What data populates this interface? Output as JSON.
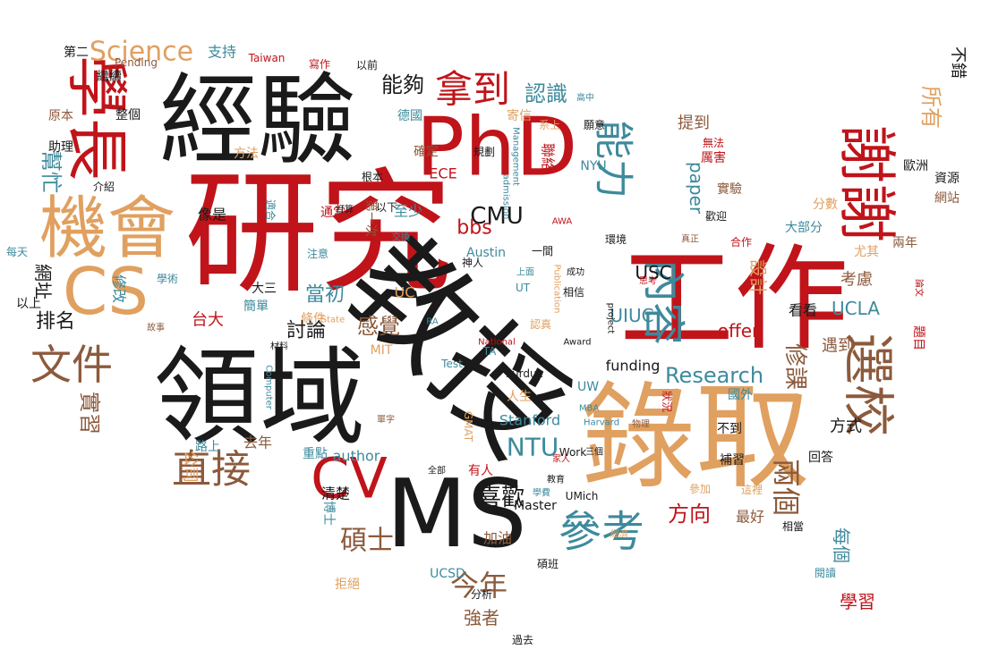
{
  "palette": {
    "red": "#c0141a",
    "black": "#1a1a1a",
    "tan": "#e0a060",
    "teal": "#3d8a9c",
    "brown": "#8c5a3c"
  },
  "words": [
    {
      "text": "研究",
      "color": "red"
    },
    {
      "text": "經驗",
      "color": "black"
    },
    {
      "text": "PhD",
      "color": "red"
    },
    {
      "text": "領域",
      "color": "black"
    },
    {
      "text": "教授",
      "color": "black"
    },
    {
      "text": "錄取",
      "color": "tan"
    },
    {
      "text": "工作",
      "color": "red"
    },
    {
      "text": "MS",
      "color": "black"
    },
    {
      "text": "機會",
      "color": "tan"
    },
    {
      "text": "CS",
      "color": "tan"
    },
    {
      "text": "學長",
      "color": "red"
    },
    {
      "text": "謝謝",
      "color": "red"
    },
    {
      "text": "CV",
      "color": "red"
    },
    {
      "text": "選校",
      "color": "brown"
    },
    {
      "text": "文件",
      "color": "brown"
    },
    {
      "text": "參考",
      "color": "teal"
    },
    {
      "text": "直接",
      "color": "brown"
    },
    {
      "text": "內容",
      "color": "teal"
    },
    {
      "text": "拿到",
      "color": "red"
    },
    {
      "text": "能力",
      "color": "teal"
    },
    {
      "text": "Science",
      "color": "tan"
    },
    {
      "text": "CMU",
      "color": "black"
    },
    {
      "text": "NTU",
      "color": "teal"
    },
    {
      "text": "Research",
      "color": "teal"
    },
    {
      "text": "今年",
      "color": "brown"
    },
    {
      "text": "碩士",
      "color": "brown"
    },
    {
      "text": "兩個",
      "color": "brown"
    },
    {
      "text": "所有",
      "color": "tan"
    },
    {
      "text": "喜歡",
      "color": "black"
    },
    {
      "text": "感覺",
      "color": "brown"
    },
    {
      "text": "幫忙",
      "color": "teal"
    },
    {
      "text": "實習",
      "color": "brown"
    },
    {
      "text": "網址",
      "color": "black"
    },
    {
      "text": "排名",
      "color": "black"
    },
    {
      "text": "認識",
      "color": "teal"
    },
    {
      "text": "能夠",
      "color": "black"
    },
    {
      "text": "修課",
      "color": "brown"
    },
    {
      "text": "paper",
      "color": "teal"
    },
    {
      "text": "方向",
      "color": "red"
    },
    {
      "text": "每個",
      "color": "teal"
    },
    {
      "text": "UIUC",
      "color": "teal"
    },
    {
      "text": "USC",
      "color": "black"
    },
    {
      "text": "UCLA",
      "color": "teal"
    },
    {
      "text": "offer",
      "color": "red"
    },
    {
      "text": "bbs",
      "color": "red"
    },
    {
      "text": "當初",
      "color": "teal"
    },
    {
      "text": "討論",
      "color": "black"
    },
    {
      "text": "台大",
      "color": "red"
    },
    {
      "text": "強者",
      "color": "brown"
    },
    {
      "text": "學習",
      "color": "red"
    },
    {
      "text": "Stanford",
      "color": "teal"
    },
    {
      "text": "funding",
      "color": "black"
    },
    {
      "text": "設計",
      "color": "tan"
    },
    {
      "text": "考慮",
      "color": "brown"
    },
    {
      "text": "方式",
      "color": "black"
    },
    {
      "text": "看看",
      "color": "black"
    },
    {
      "text": "遇到",
      "color": "brown"
    },
    {
      "text": "公司",
      "color": "tan"
    },
    {
      "text": "路上",
      "color": "teal"
    },
    {
      "text": "清楚",
      "color": "black"
    },
    {
      "text": "Master",
      "color": "black"
    },
    {
      "text": "加油",
      "color": "brown"
    },
    {
      "text": "UCSD",
      "color": "teal"
    },
    {
      "text": "最好",
      "color": "brown"
    },
    {
      "text": "支持",
      "color": "teal"
    },
    {
      "text": "第二",
      "color": "black"
    },
    {
      "text": "Taiwan",
      "color": "red"
    },
    {
      "text": "Pending",
      "color": "brown"
    },
    {
      "text": "繼續",
      "color": "black"
    },
    {
      "text": "原本",
      "color": "brown"
    },
    {
      "text": "整個",
      "color": "black"
    },
    {
      "text": "助理",
      "color": "black"
    },
    {
      "text": "方法",
      "color": "tan"
    },
    {
      "text": "提到",
      "color": "brown"
    },
    {
      "text": "以上",
      "color": "black"
    },
    {
      "text": "修改",
      "color": "teal"
    },
    {
      "text": "每天",
      "color": "teal"
    },
    {
      "text": "大三",
      "color": "black"
    },
    {
      "text": "簡單",
      "color": "teal"
    },
    {
      "text": "條件",
      "color": "tan"
    },
    {
      "text": "去年",
      "color": "brown"
    },
    {
      "text": "author",
      "color": "teal"
    },
    {
      "text": "重點",
      "color": "teal"
    },
    {
      "text": "博士",
      "color": "teal"
    },
    {
      "text": "有人",
      "color": "red"
    },
    {
      "text": "人生",
      "color": "tan"
    },
    {
      "text": "ECE",
      "color": "red"
    },
    {
      "text": "UW",
      "color": "teal"
    },
    {
      "text": "NYU",
      "color": "teal"
    },
    {
      "text": "MIT",
      "color": "tan"
    },
    {
      "text": "Purdue",
      "color": "black"
    },
    {
      "text": "UMich",
      "color": "black"
    },
    {
      "text": "分析",
      "color": "black"
    },
    {
      "text": "碩班",
      "color": "black"
    },
    {
      "text": "拒絕",
      "color": "tan"
    },
    {
      "text": "資源",
      "color": "black"
    },
    {
      "text": "網站",
      "color": "brown"
    },
    {
      "text": "歐洲",
      "color": "black"
    },
    {
      "text": "兩年",
      "color": "brown"
    },
    {
      "text": "尤其",
      "color": "tan"
    },
    {
      "text": "大部分",
      "color": "teal"
    },
    {
      "text": "分數",
      "color": "tan"
    },
    {
      "text": "實驗",
      "color": "brown"
    },
    {
      "text": "厲害",
      "color": "red"
    },
    {
      "text": "無法",
      "color": "red"
    },
    {
      "text": "題目",
      "color": "red"
    },
    {
      "text": "回答",
      "color": "black"
    },
    {
      "text": "補習",
      "color": "black"
    },
    {
      "text": "不到",
      "color": "black"
    },
    {
      "text": "國外",
      "color": "teal"
    },
    {
      "text": "狀況",
      "color": "red"
    },
    {
      "text": "歡迎",
      "color": "black"
    },
    {
      "text": "不錯",
      "color": "black"
    },
    {
      "text": "德國",
      "color": "teal"
    },
    {
      "text": "寄信",
      "color": "tan"
    },
    {
      "text": "聯絡",
      "color": "red"
    },
    {
      "text": "確定",
      "color": "brown"
    },
    {
      "text": "規劃",
      "color": "black"
    },
    {
      "text": "第一次",
      "color": "brown"
    },
    {
      "text": "像是",
      "color": "black"
    },
    {
      "text": "介紹",
      "color": "black"
    },
    {
      "text": "以前",
      "color": "black"
    },
    {
      "text": "寫作",
      "color": "red"
    },
    {
      "text": "至少",
      "color": "teal"
    },
    {
      "text": "以下",
      "color": "black"
    },
    {
      "text": "注意",
      "color": "teal"
    },
    {
      "text": "Austin",
      "color": "teal"
    },
    {
      "text": "適合",
      "color": "teal"
    },
    {
      "text": "通常",
      "color": "red"
    },
    {
      "text": "根本",
      "color": "black"
    },
    {
      "text": "相信",
      "color": "black"
    },
    {
      "text": "環境",
      "color": "black"
    },
    {
      "text": "合作",
      "color": "red"
    },
    {
      "text": "GMAT",
      "color": "tan"
    },
    {
      "text": "學術",
      "color": "teal"
    },
    {
      "text": "故事",
      "color": "brown"
    },
    {
      "text": "State",
      "color": "tan"
    },
    {
      "text": "Work",
      "color": "black"
    },
    {
      "text": "Computer",
      "color": "teal"
    },
    {
      "text": "Harvard",
      "color": "teal"
    },
    {
      "text": "MBA",
      "color": "teal"
    },
    {
      "text": "AWA",
      "color": "red"
    },
    {
      "text": "TA",
      "color": "teal"
    },
    {
      "text": "RA",
      "color": "teal"
    },
    {
      "text": "UC",
      "color": "tan"
    },
    {
      "text": "UT",
      "color": "teal"
    },
    {
      "text": "National",
      "color": "red"
    },
    {
      "text": "Award",
      "color": "black"
    },
    {
      "text": "project",
      "color": "black"
    },
    {
      "text": "Publication",
      "color": "tan"
    },
    {
      "text": "admission",
      "color": "teal"
    },
    {
      "text": "Management",
      "color": "teal"
    },
    {
      "text": "Test",
      "color": "teal"
    },
    {
      "text": "系上",
      "color": "tan"
    },
    {
      "text": "高中",
      "color": "teal"
    },
    {
      "text": "願意",
      "color": "black"
    },
    {
      "text": "真正",
      "color": "brown"
    },
    {
      "text": "論文",
      "color": "red"
    },
    {
      "text": "相當",
      "color": "black"
    },
    {
      "text": "參加",
      "color": "tan"
    },
    {
      "text": "這裡",
      "color": "tan"
    },
    {
      "text": "閱讀",
      "color": "teal"
    },
    {
      "text": "經濟",
      "color": "tan"
    },
    {
      "text": "過去",
      "color": "black"
    },
    {
      "text": "教育",
      "color": "black"
    },
    {
      "text": "家人",
      "color": "red"
    },
    {
      "text": "三個",
      "color": "black"
    },
    {
      "text": "成功",
      "color": "black"
    },
    {
      "text": "思考",
      "color": "red"
    },
    {
      "text": "上面",
      "color": "teal"
    },
    {
      "text": "神人",
      "color": "black"
    },
    {
      "text": "一間",
      "color": "black"
    },
    {
      "text": "打算",
      "color": "black"
    },
    {
      "text": "交換",
      "color": "teal"
    },
    {
      "text": "認真",
      "color": "tan"
    },
    {
      "text": "全部",
      "color": "black"
    },
    {
      "text": "單字",
      "color": "brown"
    },
    {
      "text": "學費",
      "color": "teal"
    },
    {
      "text": "材料",
      "color": "black"
    },
    {
      "text": "物理",
      "color": "brown"
    }
  ]
}
